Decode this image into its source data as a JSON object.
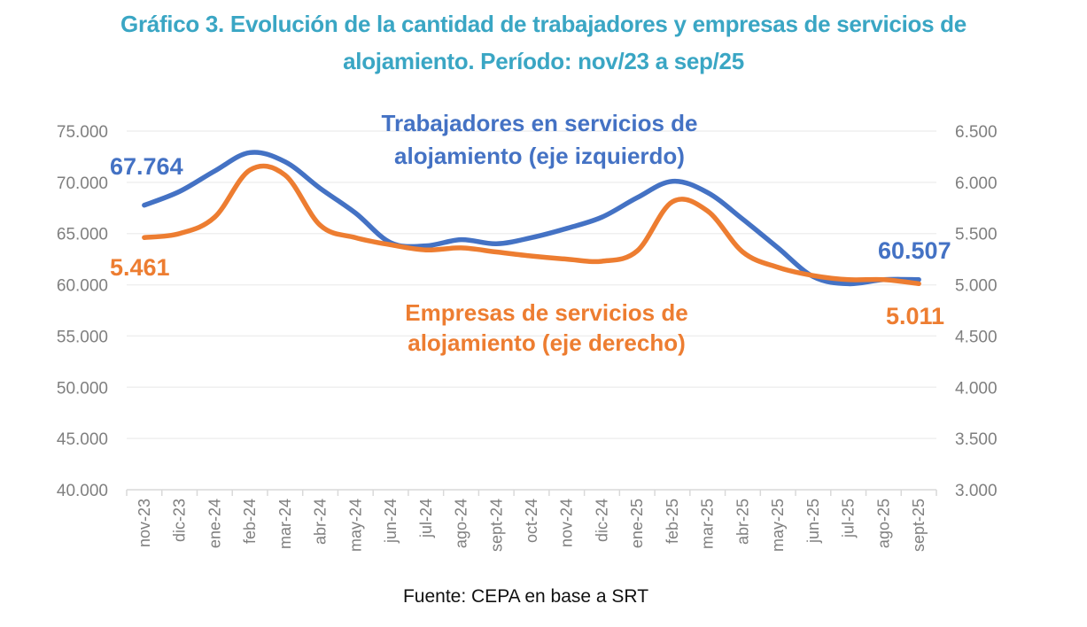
{
  "chart_data": {
    "type": "line",
    "title": "Gráfico 3. Evolución de la cantidad de trabajadores y empresas de servicios de alojamiento. Período: nov/23 a sep/25",
    "title_lines": [
      "Gráfico 3. Evolución de la cantidad de trabajadores y empresas de servicios de",
      "alojamiento. Período: nov/23 a sep/25"
    ],
    "source": "Fuente: CEPA en base a SRT",
    "xlabel": "",
    "ylabel_left": "",
    "ylabel_right": "",
    "categories": [
      "nov-23",
      "dic-23",
      "ene-24",
      "feb-24",
      "mar-24",
      "abr-24",
      "may-24",
      "jun-24",
      "jul-24",
      "ago-24",
      "sept-24",
      "oct-24",
      "nov-24",
      "dic-24",
      "ene-25",
      "feb-25",
      "mar-25",
      "abr-25",
      "may-25",
      "jun-25",
      "jul-25",
      "ago-25",
      "sept-25"
    ],
    "y_left": {
      "range": [
        40000,
        75000
      ],
      "ticks": [
        40000,
        45000,
        50000,
        55000,
        60000,
        65000,
        70000,
        75000
      ],
      "tick_labels": [
        "40.000",
        "45.000",
        "50.000",
        "55.000",
        "60.000",
        "65.000",
        "70.000",
        "75.000"
      ]
    },
    "y_right": {
      "range": [
        3000,
        6500
      ],
      "ticks": [
        3000,
        3500,
        4000,
        4500,
        5000,
        5500,
        6000,
        6500
      ],
      "tick_labels": [
        "3.000",
        "3.500",
        "4.000",
        "4.500",
        "5.000",
        "5.500",
        "6.000",
        "6.500"
      ]
    },
    "grid": true,
    "series": [
      {
        "name": "Trabajadores en servicios de alojamiento (eje izquierdo)",
        "label_lines": [
          "Trabajadores en servicios de",
          "alojamiento (eje izquierdo)"
        ],
        "axis": "left",
        "color": "#4472c4",
        "smooth": true,
        "values": [
          67764,
          69100,
          71100,
          72900,
          72000,
          69400,
          67000,
          64100,
          63800,
          64400,
          64000,
          64600,
          65500,
          66600,
          68500,
          70100,
          69000,
          66400,
          63600,
          60800,
          60100,
          60500,
          60507
        ],
        "first_label": "67.764",
        "last_label": "60.507"
      },
      {
        "name": "Empresas de servicios de alojamiento (eje derecho)",
        "label_lines": [
          "Empresas de servicios de",
          "alojamiento (eje derecho)"
        ],
        "axis": "right",
        "color": "#ed7d31",
        "smooth": true,
        "values": [
          5461,
          5500,
          5660,
          6120,
          6070,
          5580,
          5460,
          5390,
          5340,
          5360,
          5320,
          5280,
          5250,
          5230,
          5330,
          5810,
          5720,
          5320,
          5170,
          5090,
          5050,
          5050,
          5011
        ],
        "first_label": "5.461",
        "last_label": "5.011"
      }
    ],
    "colors": {
      "title": "#3aa6c4",
      "axis_text": "#7f7f7f",
      "grid": "#efefef"
    }
  }
}
